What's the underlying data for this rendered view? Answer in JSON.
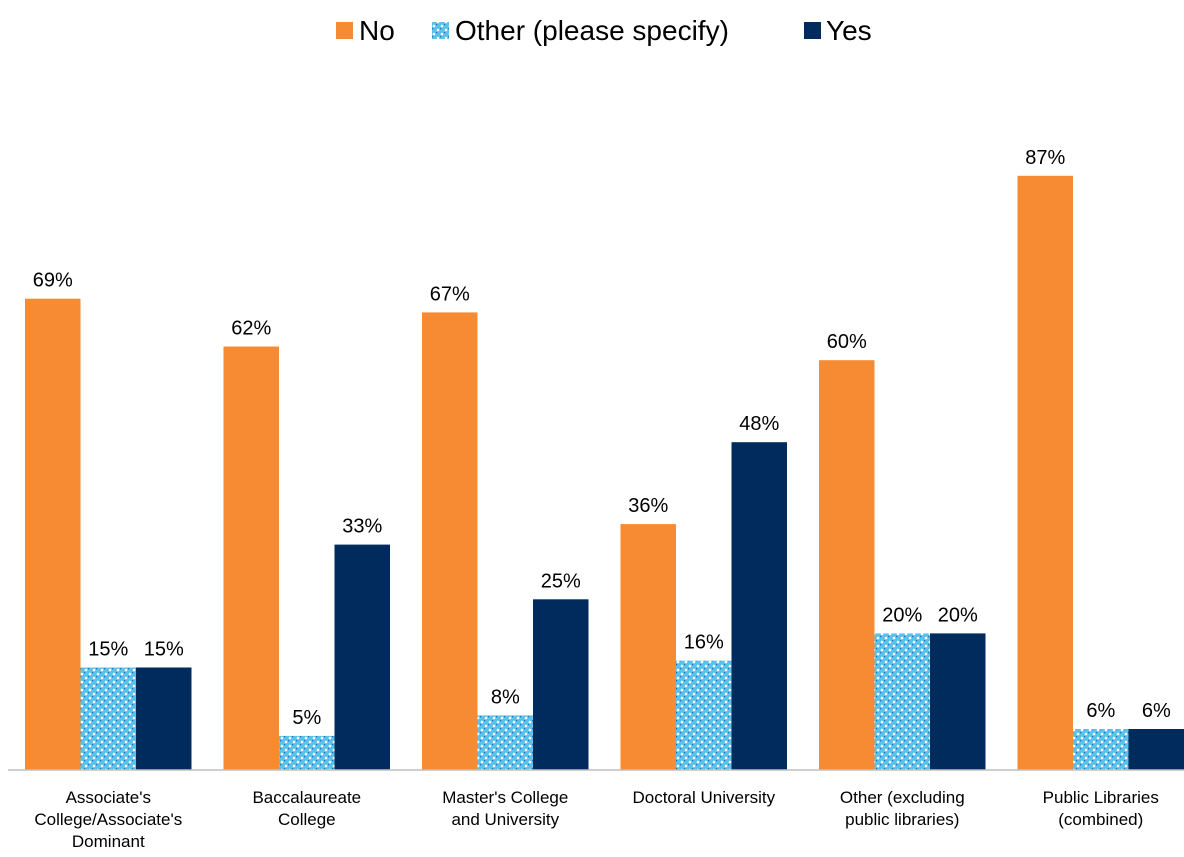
{
  "chart_data": {
    "type": "bar",
    "categories": [
      [
        "Associate's",
        "College/Associate's",
        "Dominant"
      ],
      [
        "Baccalaureate",
        "College"
      ],
      [
        "Master's College",
        "and University"
      ],
      [
        "Doctoral University"
      ],
      [
        "Other (excluding",
        "public libraries)"
      ],
      [
        "Public Libraries",
        "(combined)"
      ]
    ],
    "series": [
      {
        "name": "No",
        "color": "#F68B33",
        "pattern": "solid",
        "values": [
          69,
          62,
          67,
          36,
          60,
          87
        ],
        "labels": [
          "69%",
          "62%",
          "67%",
          "36%",
          "60%",
          "87%"
        ]
      },
      {
        "name": "Other (please specify)",
        "color": "#5BC0EB",
        "pattern": "dotted",
        "values": [
          15,
          5,
          8,
          16,
          20,
          6
        ],
        "labels": [
          "15%",
          "5%",
          "8%",
          "16%",
          "20%",
          "6%"
        ]
      },
      {
        "name": "Yes",
        "color": "#002B5C",
        "pattern": "solid",
        "values": [
          15,
          33,
          25,
          48,
          20,
          6
        ],
        "labels": [
          "15%",
          "33%",
          "25%",
          "48%",
          "20%",
          "6%"
        ]
      }
    ],
    "ylim": [
      0,
      100
    ],
    "grid": false,
    "legend": "top-center"
  }
}
